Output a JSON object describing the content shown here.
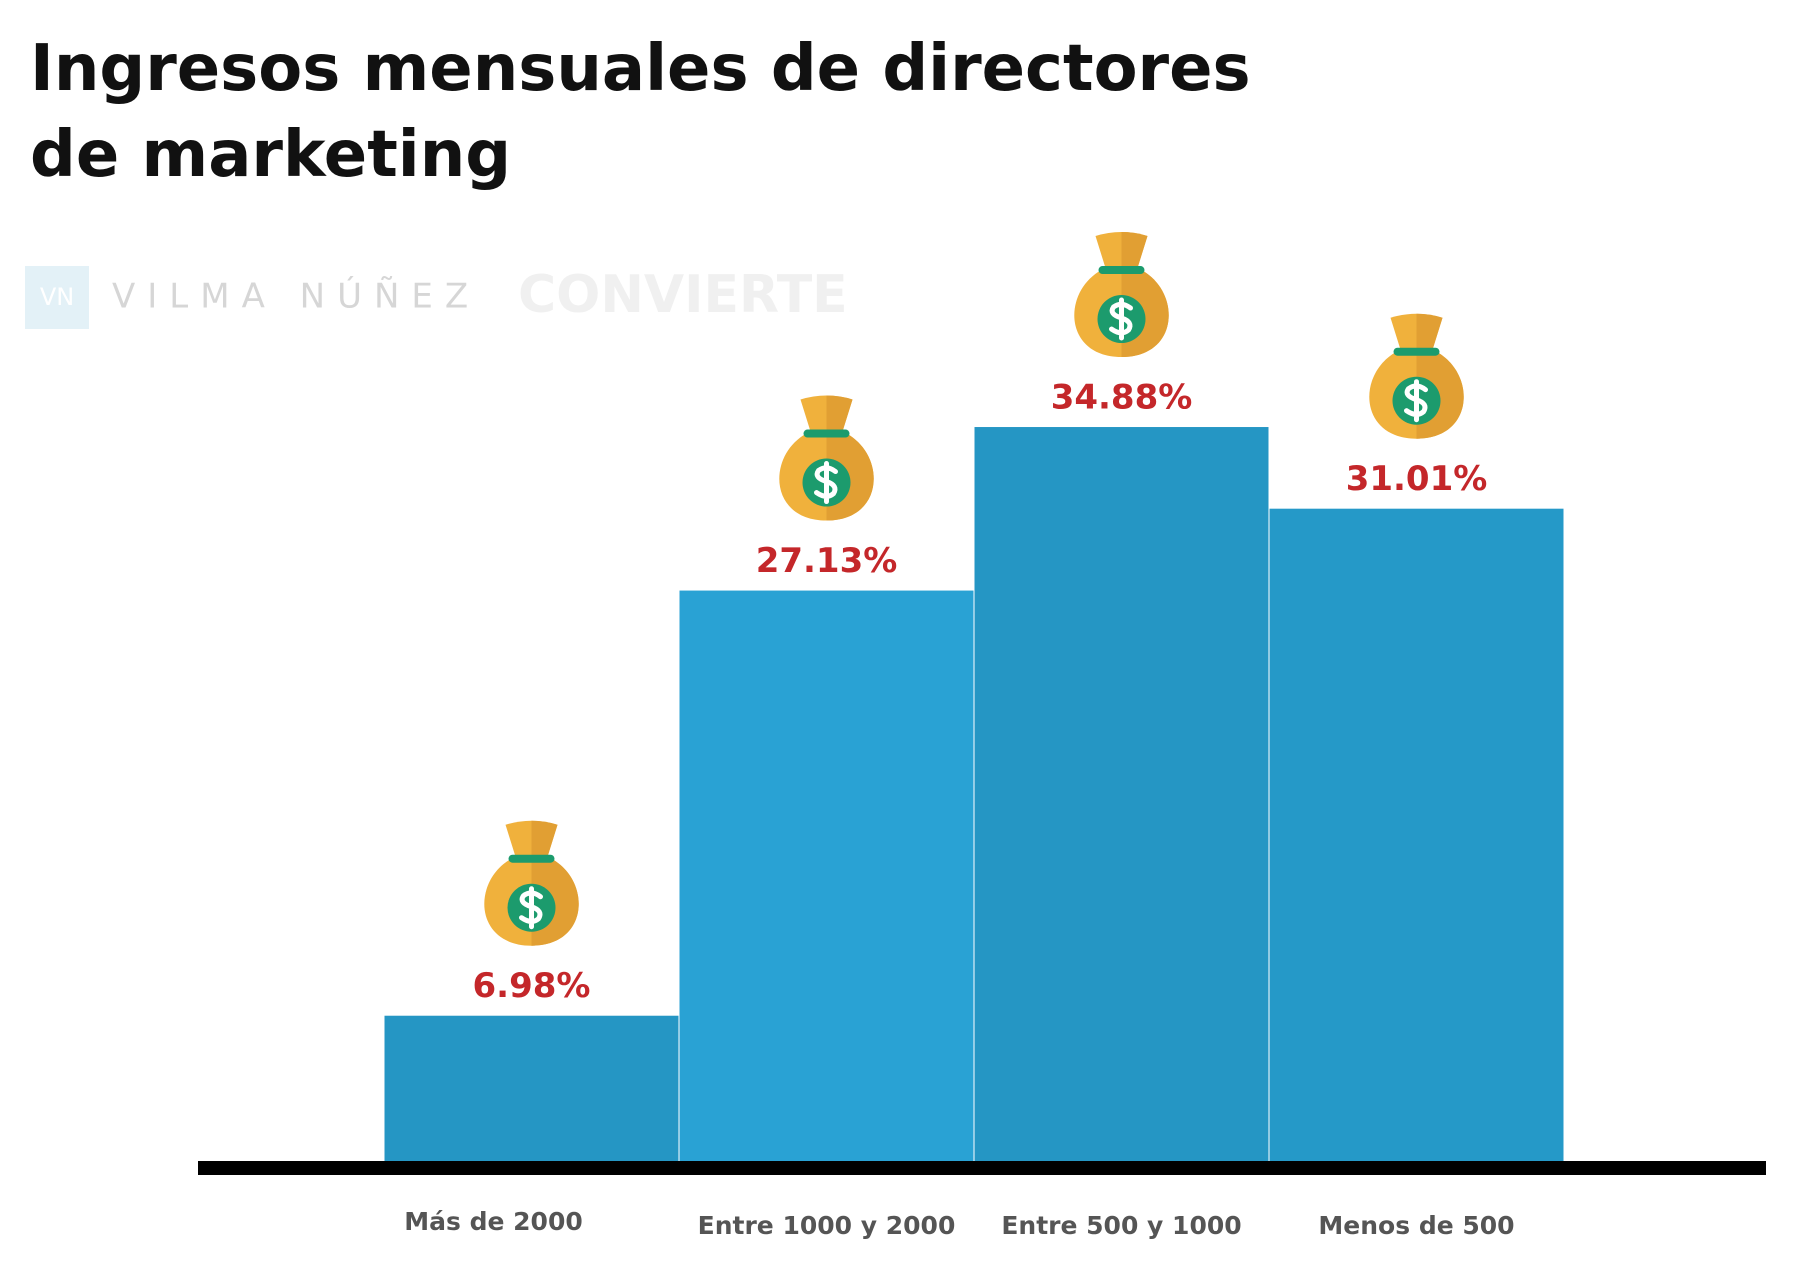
{
  "chart_data": {
    "type": "bar",
    "title": "Ingresos mensuales de directores de marketing",
    "watermarks": [
      "VN",
      "VILMA NÚÑEZ",
      "CONVIERTE"
    ],
    "categories": [
      "Más de 2000",
      "Entre 1000 y 2000",
      "Entre 500 y 1000",
      "Menos de 500"
    ],
    "values": [
      6.98,
      27.13,
      34.88,
      31.01
    ],
    "value_labels": [
      "6.98%",
      "27.13%",
      "34.88%",
      "31.01%"
    ],
    "colors": [
      "#2596c4",
      "#29a2d4",
      "#2596c4",
      "#2599c8"
    ],
    "label_color": "#c4272a",
    "ylim": [
      0,
      40
    ]
  }
}
